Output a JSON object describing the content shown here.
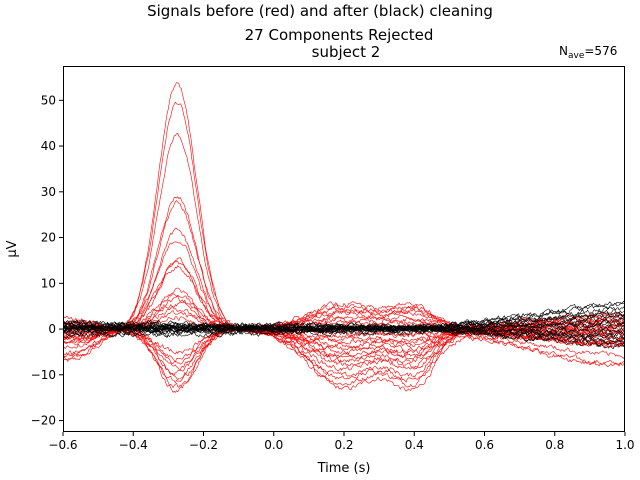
{
  "chart_data": {
    "type": "line",
    "suptitle": "Signals before (red) and after (black) cleaning",
    "title_line1": "27 Components Rejected",
    "title_line2": "subject 2",
    "nave_label": "N",
    "nave_sub": "ave",
    "nave_value": "=576",
    "xlabel": "Time (s)",
    "ylabel": "µV",
    "xlim": [
      -0.6,
      1.0
    ],
    "ylim": [
      -22.5,
      57.5
    ],
    "xticks": [
      -0.6,
      -0.4,
      -0.2,
      0.0,
      0.2,
      0.4,
      0.6,
      0.8,
      1.0
    ],
    "xtick_labels": [
      "−0.6",
      "−0.4",
      "−0.2",
      "0.0",
      "0.2",
      "0.4",
      "0.6",
      "0.8",
      "1.0"
    ],
    "yticks": [
      -20,
      -10,
      0,
      10,
      20,
      30,
      40,
      50
    ],
    "ytick_labels": [
      "−20",
      "−10",
      "0",
      "10",
      "20",
      "30",
      "40",
      "50"
    ],
    "grid": false,
    "series_colors": {
      "before": "#ff0000",
      "after": "#000000"
    },
    "before_peak_amplitudes": [
      53.5,
      49.5,
      42.5,
      29,
      27.5,
      21.5,
      19.5,
      15,
      14.5,
      13.5,
      8.5,
      7.5,
      6.5,
      5.5,
      4.5,
      3.5,
      2.5,
      -5,
      -6.5,
      -7.5,
      -8.5,
      -9.5,
      -10.5,
      -11.5,
      -12.5,
      -13.5
    ],
    "before_late_troughs": [
      -18.5,
      -17,
      -15.5,
      -14.5,
      -12.5,
      -11,
      -10,
      -9,
      -8,
      -7,
      -6,
      -5,
      -4,
      -3,
      -2,
      -1.5,
      0,
      1,
      2,
      3,
      4,
      5,
      5.5,
      6.5,
      7,
      8
    ],
    "after_drift_end": [
      6,
      5.5,
      4.5,
      4,
      3,
      2.5,
      1.5,
      1,
      0.5,
      0,
      -0.5,
      -1,
      -1.5,
      -2,
      -2.5,
      -3,
      -3.5,
      -4,
      2,
      3.5
    ]
  }
}
